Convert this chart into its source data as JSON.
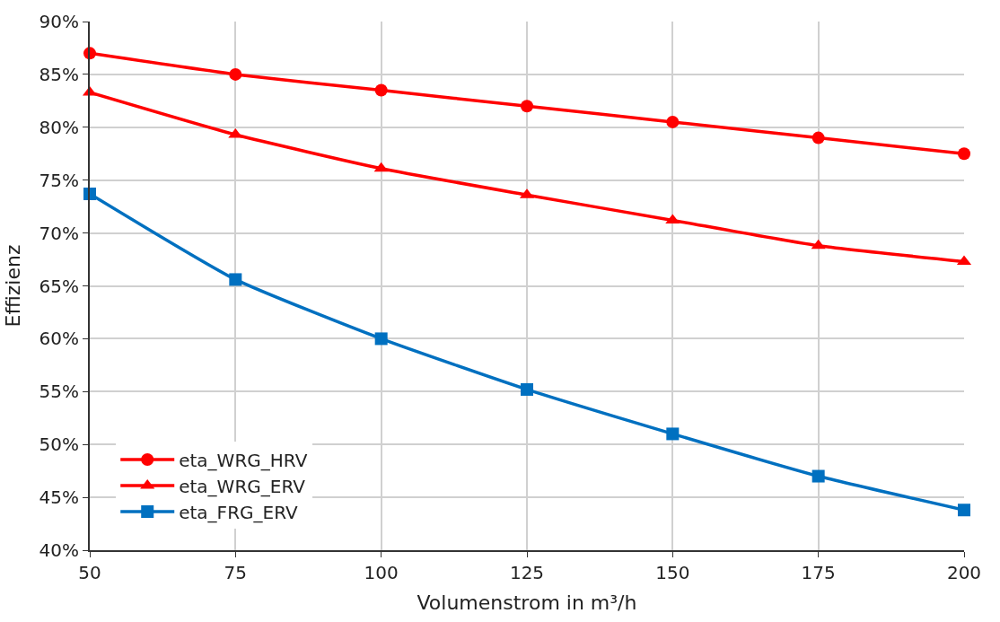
{
  "chart_data": {
    "type": "line",
    "xlabel": "Volumenstrom in m³/h",
    "ylabel": "Effizienz",
    "x": [
      50,
      75,
      100,
      125,
      150,
      175,
      200
    ],
    "series": [
      {
        "name": "eta_WRG_HRV",
        "color": "#ff0000",
        "marker": "circle",
        "values": [
          87.0,
          85.0,
          83.5,
          82.0,
          80.5,
          79.0,
          77.5
        ]
      },
      {
        "name": "eta_WRG_ERV",
        "color": "#ff0000",
        "marker": "triangle",
        "values": [
          83.3,
          79.3,
          76.1,
          73.6,
          71.2,
          68.8,
          67.3
        ]
      },
      {
        "name": "eta_FRG_ERV",
        "color": "#0070c0",
        "marker": "square",
        "values": [
          73.7,
          65.6,
          60.0,
          55.2,
          51.0,
          47.0,
          43.8
        ]
      }
    ],
    "xlim": [
      50,
      200
    ],
    "xticks": [
      50,
      75,
      100,
      125,
      150,
      175,
      200
    ],
    "ylim": [
      40,
      90
    ],
    "yticks": [
      {
        "value": 40,
        "label": "40%"
      },
      {
        "value": 45,
        "label": "45%"
      },
      {
        "value": 50,
        "label": "50%"
      },
      {
        "value": 55,
        "label": "55%"
      },
      {
        "value": 60,
        "label": "60%"
      },
      {
        "value": 65,
        "label": "65%"
      },
      {
        "value": 70,
        "label": "70%"
      },
      {
        "value": 75,
        "label": "75%"
      },
      {
        "value": 80,
        "label": "80%"
      },
      {
        "value": 85,
        "label": "85%"
      },
      {
        "value": 90,
        "label": "90%"
      }
    ],
    "grid": true,
    "legend": "bottom left",
    "line_style": "solid"
  }
}
